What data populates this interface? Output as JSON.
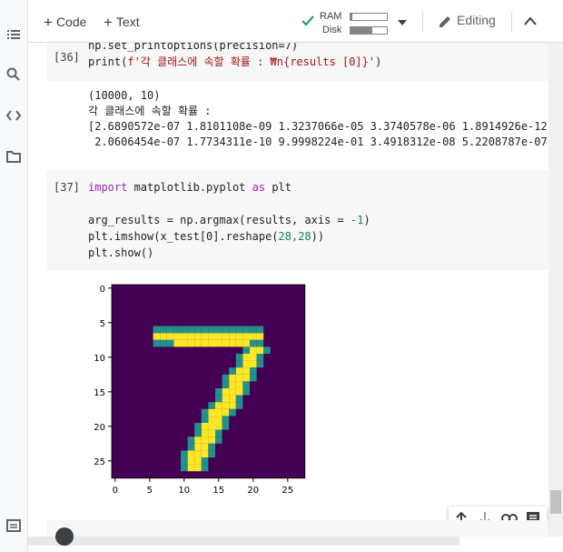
{
  "toolbar": {
    "code_label": "Code",
    "text_label": "Text",
    "ram_label": "RAM",
    "disk_label": "Disk",
    "ram_level": 0.05,
    "disk_level": 0.6,
    "editing_label": "Editing"
  },
  "cell36": {
    "prompt": "[36]",
    "line1": "np.set_printoptions(precision=7)",
    "line2_a": "print(",
    "line2_str": "f'각 클래스에 속할 확률 : ₩n{results [0]}'",
    "line2_b": ")",
    "output": "(10000, 10)\n각 클래스에 속할 확률 :\n[2.6890572e-07 1.8101108e-09 1.3237066e-05 3.3740578e-06 1.8914926e-12\n 2.0606454e-07 1.7734311e-10 9.9998224e-01 3.4918312e-08 5.2208787e-07]"
  },
  "cell37": {
    "prompt": "[37]",
    "import_kw": "import",
    "import_mod": " matplotlib.pyplot ",
    "as_kw": "as",
    "import_alias": " plt",
    "line2_a": "arg_results = np.argmax(results, axis = ",
    "line2_num": "-1",
    "line2_b": ")",
    "line3_a": "plt.imshow(x_test[0].reshape(",
    "line3_num": "28,28",
    "line3_b": "))",
    "line4": "plt.show()"
  },
  "plot": {
    "y_ticks": [
      "0",
      "5",
      "10",
      "15",
      "20",
      "25"
    ],
    "x_ticks": [
      "0",
      "5",
      "10",
      "15",
      "20",
      "25"
    ],
    "colors": {
      "background": "#440154",
      "mid": "#21918c",
      "high": "#fde725"
    }
  },
  "icons": [
    "menu-icon",
    "search-icon",
    "code-icon",
    "folder-icon",
    "terminal-icon",
    "checkmark-icon",
    "chevron-down-icon",
    "pencil-icon",
    "chevron-up-icon",
    "arrow-up-icon",
    "arrow-down-icon",
    "link-icon",
    "comment-icon"
  ]
}
